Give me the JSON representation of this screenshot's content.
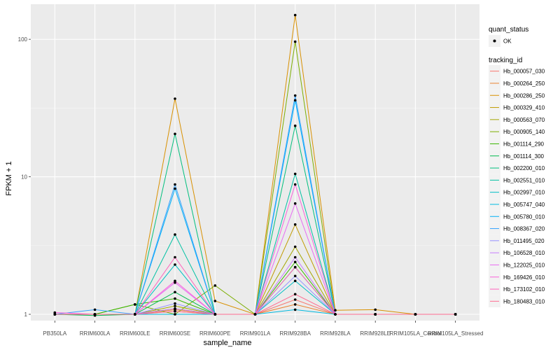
{
  "chart_data": {
    "type": "line",
    "xlabel": "sample_name",
    "ylabel": "FPKM + 1",
    "y_scale": "log10",
    "ylim": [
      0.9,
      180
    ],
    "y_ticks": [
      1,
      10,
      100
    ],
    "y_tick_labels": [
      "1",
      "10",
      "100"
    ],
    "categories": [
      "PB350LA",
      "RRIM600LA",
      "RRIM600LE",
      "RRIM600SE",
      "RRIM600PE",
      "RRIM901LA",
      "RRIM928BA",
      "RRIM928LA",
      "RRIM928LE",
      "RRIM105LA_Control",
      "RRIM105LA_Stressed"
    ],
    "legend": {
      "quant_status": {
        "title": "quant_status",
        "labels": [
          "OK"
        ]
      },
      "tracking_id": {
        "title": "tracking_id"
      }
    },
    "series": [
      {
        "name": "Hb_000057_030",
        "color": "#F8766D",
        "values": [
          1.0,
          1.0,
          1.0,
          1.05,
          1.0,
          1.0,
          1.28,
          1.0,
          1.0,
          1.0,
          1.0
        ]
      },
      {
        "name": "Hb_000264_250",
        "color": "#EA8331",
        "values": [
          1.0,
          1.0,
          1.0,
          1.08,
          1.0,
          1.0,
          1.18,
          1.0,
          1.0,
          1.0,
          1.0
        ]
      },
      {
        "name": "Hb_000286_250",
        "color": "#D89000",
        "values": [
          1.0,
          1.0,
          1.0,
          37.0,
          1.25,
          1.0,
          150.0,
          1.07,
          1.08,
          1.0,
          1.0
        ]
      },
      {
        "name": "Hb_000329_410",
        "color": "#C09B00",
        "values": [
          1.0,
          1.0,
          1.0,
          1.1,
          1.0,
          1.0,
          4.5,
          1.0,
          1.0,
          1.0,
          1.0
        ]
      },
      {
        "name": "Hb_000563_070",
        "color": "#A3A500",
        "values": [
          1.0,
          1.0,
          1.0,
          1.15,
          1.0,
          1.0,
          3.1,
          1.0,
          1.0,
          1.0,
          1.0
        ]
      },
      {
        "name": "Hb_000905_140",
        "color": "#7CAE00",
        "values": [
          1.0,
          1.0,
          1.18,
          1.0,
          1.62,
          1.0,
          96.0,
          1.0,
          1.0,
          1.0,
          1.0
        ]
      },
      {
        "name": "Hb_001114_290",
        "color": "#39B600",
        "values": [
          1.0,
          1.0,
          1.18,
          1.3,
          1.0,
          1.0,
          2.4,
          1.0,
          1.0,
          1.0,
          1.0
        ]
      },
      {
        "name": "Hb_001114_300",
        "color": "#00BB4E",
        "values": [
          1.0,
          0.98,
          1.0,
          1.45,
          1.0,
          1.0,
          2.2,
          1.0,
          1.0,
          1.0,
          1.0
        ]
      },
      {
        "name": "Hb_002200_010",
        "color": "#00BF7D",
        "values": [
          1.0,
          1.0,
          1.0,
          20.5,
          1.0,
          1.0,
          23.5,
          1.0,
          1.0,
          1.0,
          1.0
        ]
      },
      {
        "name": "Hb_002551_010",
        "color": "#00C1A3",
        "values": [
          1.0,
          1.0,
          1.0,
          3.8,
          1.0,
          1.0,
          10.5,
          1.0,
          1.0,
          1.0,
          1.0
        ]
      },
      {
        "name": "Hb_002997_010",
        "color": "#00BFC4",
        "values": [
          1.0,
          1.0,
          1.0,
          2.3,
          1.0,
          1.0,
          1.75,
          1.0,
          1.0,
          1.0,
          1.0
        ]
      },
      {
        "name": "Hb_005747_040",
        "color": "#00BAE0",
        "values": [
          1.0,
          1.0,
          1.0,
          1.0,
          1.0,
          1.0,
          1.08,
          1.0,
          1.0,
          1.0,
          1.0
        ]
      },
      {
        "name": "Hb_005780_010",
        "color": "#00B0F6",
        "values": [
          1.0,
          1.0,
          1.0,
          8.2,
          1.0,
          1.0,
          36.0,
          1.0,
          1.0,
          1.0,
          1.0
        ]
      },
      {
        "name": "Hb_008367_020",
        "color": "#35A2FF",
        "values": [
          1.0,
          1.08,
          1.0,
          8.8,
          1.0,
          1.0,
          39.0,
          1.0,
          1.0,
          1.0,
          1.0
        ]
      },
      {
        "name": "Hb_011495_020",
        "color": "#9590FF",
        "values": [
          1.0,
          1.0,
          1.0,
          1.2,
          1.0,
          1.0,
          1.9,
          1.0,
          1.0,
          1.0,
          1.0
        ]
      },
      {
        "name": "Hb_106528_010",
        "color": "#C77CFF",
        "values": [
          1.0,
          1.0,
          1.0,
          1.1,
          1.0,
          1.0,
          2.6,
          1.0,
          1.0,
          1.0,
          1.0
        ]
      },
      {
        "name": "Hb_122025_010",
        "color": "#E76BF3",
        "values": [
          1.0,
          1.0,
          1.0,
          1.7,
          1.0,
          1.0,
          6.4,
          1.0,
          1.0,
          1.0,
          1.0
        ]
      },
      {
        "name": "Hb_169426_010",
        "color": "#FA62DB",
        "values": [
          1.03,
          1.0,
          1.0,
          1.75,
          1.0,
          1.0,
          8.8,
          1.0,
          1.0,
          1.0,
          1.0
        ]
      },
      {
        "name": "Hb_173102_010",
        "color": "#FF62BC",
        "values": [
          1.0,
          1.0,
          1.0,
          2.6,
          1.0,
          1.0,
          2.2,
          1.0,
          1.0,
          1.0,
          1.0
        ]
      },
      {
        "name": "Hb_180483_010",
        "color": "#FF6C91",
        "values": [
          1.0,
          1.0,
          1.0,
          1.05,
          1.0,
          1.0,
          1.4,
          1.0,
          1.0,
          1.0,
          1.0
        ]
      }
    ]
  }
}
